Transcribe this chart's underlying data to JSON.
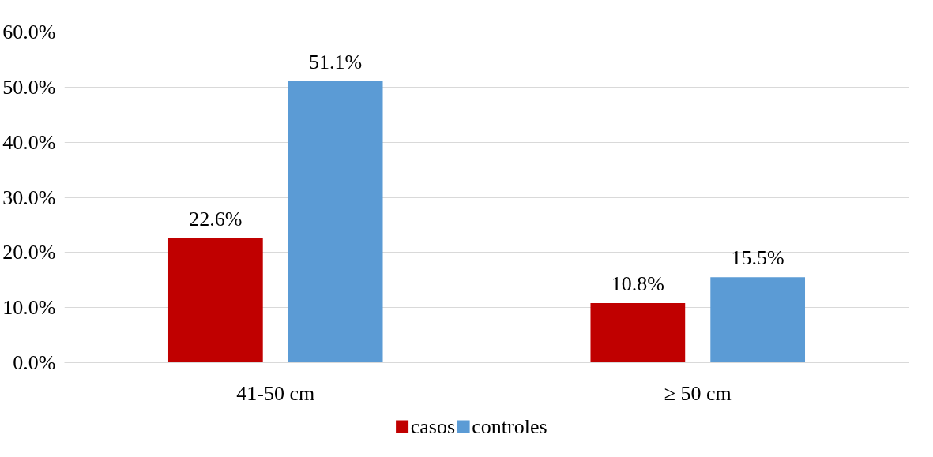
{
  "chart_data": {
    "type": "bar",
    "categories": [
      "41-50 cm",
      "≥ 50 cm"
    ],
    "series": [
      {
        "name": "casos",
        "color": "#c00000",
        "values": [
          22.6,
          10.8
        ],
        "value_labels": [
          "22.6%",
          "10.8%"
        ]
      },
      {
        "name": "controles",
        "color": "#5b9bd5",
        "values": [
          51.1,
          15.5
        ],
        "value_labels": [
          "51.1%",
          "15.5%"
        ]
      }
    ],
    "ylim": [
      0,
      60
    ],
    "yticks": [
      {
        "value": 0,
        "label": "0.0%"
      },
      {
        "value": 10,
        "label": "10.0%"
      },
      {
        "value": 20,
        "label": "20.0%"
      },
      {
        "value": 30,
        "label": "30.0%"
      },
      {
        "value": 40,
        "label": "40.0%"
      },
      {
        "value": 50,
        "label": "50.0%"
      },
      {
        "value": 60,
        "label": "60.0%"
      }
    ],
    "grid": "y",
    "legend": "bottom"
  }
}
